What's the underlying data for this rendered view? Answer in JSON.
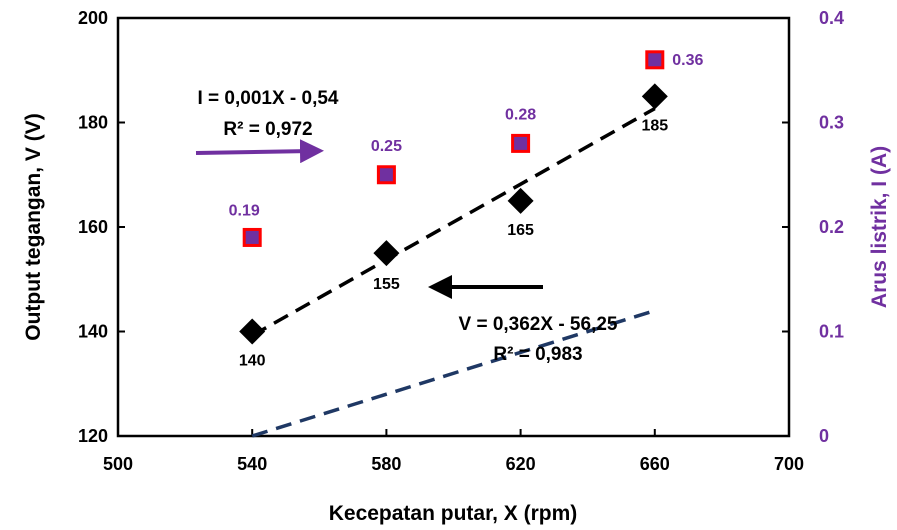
{
  "chart_data": {
    "type": "scatter",
    "title": "",
    "xlabel": "Kecepatan putar, X (rpm)",
    "ylabel": "Output tegangan, V (V)",
    "y2label": "Arus listrik, I (A)",
    "xlim": [
      500,
      700
    ],
    "ylim": [
      120,
      200
    ],
    "y2lim": [
      0,
      0.4
    ],
    "x_ticks": [
      "500",
      "540",
      "580",
      "620",
      "660",
      "700"
    ],
    "y_ticks": [
      "120",
      "140",
      "160",
      "180",
      "200"
    ],
    "y2_ticks": [
      "0",
      "0.1",
      "0.2",
      "0.3",
      "0.4"
    ],
    "grid": false,
    "series": [
      {
        "axis": "left",
        "marker": "diamond",
        "color": "#000000",
        "x": [
          540,
          580,
          620,
          660
        ],
        "values": [
          140,
          155,
          165,
          185
        ],
        "labels": [
          "140",
          "155",
          "165",
          "185"
        ]
      },
      {
        "axis": "right",
        "marker": "square",
        "color": "#7030a0",
        "edge_color": "#ff0000",
        "x": [
          540,
          580,
          620,
          660
        ],
        "values": [
          0.19,
          0.25,
          0.28,
          0.36
        ],
        "labels": [
          "0.19",
          "0.25",
          "0.28",
          "0.36"
        ]
      }
    ],
    "trendlines": [
      {
        "axis": "left",
        "slope": 0.362,
        "intercept": -56.25,
        "color": "#000000",
        "style": "dashed"
      },
      {
        "axis": "right",
        "slope": 0.001,
        "intercept": -0.54,
        "color": "#1f3864",
        "style": "dashed"
      }
    ],
    "annotations": {
      "current_eq": "I = 0,001X - 0,54",
      "current_r2": "R² = 0,972",
      "voltage_eq": "V = 0,362X - 56,25",
      "voltage_r2": "R² = 0,983"
    },
    "colors": {
      "current_axis": "#7030a0",
      "current_arrow": "#7030a0",
      "voltage_arrow": "#000000"
    }
  }
}
